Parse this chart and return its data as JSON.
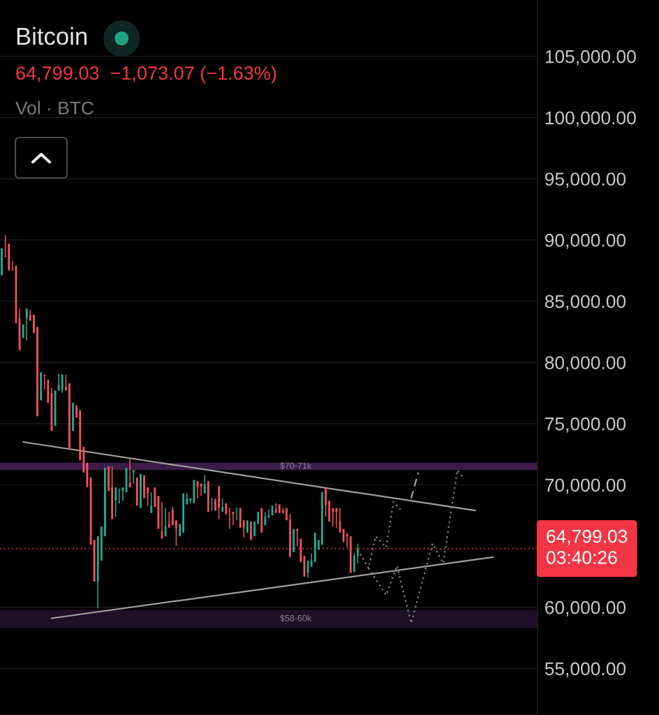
{
  "chart_data": {
    "type": "candlestick",
    "title": "Bitcoin",
    "subtitle": "64,799.03  −1,073.07 (−1.63%)",
    "annotations": [
      "Vol · BTC"
    ],
    "categories": [
      null,
      null,
      null,
      null,
      null,
      null,
      null,
      null,
      null,
      null,
      null,
      null,
      null,
      null,
      null,
      null,
      null,
      null,
      null,
      null,
      null,
      null,
      null,
      null,
      null,
      null,
      null,
      null,
      null,
      null,
      null,
      null,
      null,
      null,
      null,
      null,
      null,
      null,
      null,
      null,
      null,
      null,
      null,
      null,
      null,
      null,
      null,
      null,
      null,
      null,
      null,
      null,
      null,
      null,
      null,
      null,
      null,
      null,
      null,
      null,
      null,
      null,
      null,
      null,
      null,
      null,
      null,
      null,
      null,
      null,
      null,
      null,
      null,
      null,
      null,
      null,
      null,
      null,
      null,
      null,
      null,
      null,
      null,
      null,
      null,
      null,
      null,
      null,
      null,
      null,
      null,
      null,
      null,
      null,
      null,
      null,
      null,
      null,
      null,
      null,
      null,
      null,
      null,
      null,
      null,
      null,
      null,
      null,
      null,
      null,
      null,
      null,
      null,
      null,
      null,
      null,
      null,
      null,
      null,
      null,
      null,
      null,
      null,
      null,
      null,
      null,
      null,
      null,
      null,
      null,
      null,
      null,
      null,
      null,
      null,
      null,
      null,
      null,
      null,
      null,
      null,
      null,
      null,
      null,
      null,
      null,
      null,
      null,
      null,
      null,
      null
    ],
    "ohlc": [
      [
        87100,
        89300,
        87100,
        89300
      ],
      [
        88700,
        90400,
        88600,
        88600
      ],
      [
        89700,
        89700,
        87500,
        87500
      ],
      [
        87600,
        88300,
        87500,
        87500
      ],
      [
        87900,
        87900,
        83200,
        83200
      ],
      [
        83600,
        84400,
        81000,
        81000
      ],
      [
        82000,
        83100,
        82000,
        83100
      ],
      [
        83600,
        84400,
        81800,
        84400
      ],
      [
        83900,
        84300,
        83400,
        83400
      ],
      [
        83900,
        83900,
        82400,
        82400
      ],
      [
        82900,
        82900,
        75600,
        75600
      ],
      [
        76900,
        79200,
        76900,
        79200
      ],
      [
        79000,
        79000,
        77800,
        78900
      ],
      [
        78600,
        78600,
        76700,
        76700
      ],
      [
        77500,
        77900,
        74400,
        74400
      ],
      [
        74800,
        77700,
        74800,
        77700
      ],
      [
        77700,
        79100,
        77700,
        78200
      ],
      [
        77700,
        79000,
        77500,
        79000
      ],
      [
        78000,
        79000,
        77700,
        77700
      ],
      [
        78300,
        78300,
        72900,
        72900
      ],
      [
        74400,
        76700,
        74400,
        76700
      ],
      [
        76500,
        76500,
        75500,
        75500
      ],
      [
        76100,
        76100,
        72000,
        72000
      ],
      [
        73100,
        73100,
        71000,
        71000
      ],
      [
        71800,
        71800,
        69800,
        69800
      ],
      [
        70600,
        70600,
        65100,
        65100
      ],
      [
        65500,
        65500,
        62100,
        62100
      ],
      [
        62100,
        65800,
        59900,
        65800
      ],
      [
        63800,
        66600,
        63800,
        66600
      ],
      [
        65800,
        71400,
        65800,
        71400
      ],
      [
        71500,
        71500,
        69500,
        69500
      ],
      [
        69800,
        71500,
        67200,
        67200
      ],
      [
        68700,
        69800,
        67400,
        69800
      ],
      [
        68500,
        69700,
        68500,
        68600
      ],
      [
        69500,
        69800,
        68700,
        69800
      ],
      [
        69400,
        71400,
        69400,
        71400
      ],
      [
        70200,
        72100,
        69800,
        69800
      ],
      [
        71000,
        71200,
        70100,
        71200
      ],
      [
        70600,
        70600,
        68300,
        68300
      ],
      [
        68100,
        70900,
        68100,
        70900
      ],
      [
        70800,
        70800,
        68900,
        68900
      ],
      [
        69800,
        69800,
        68300,
        69300
      ],
      [
        67700,
        69400,
        67700,
        68300
      ],
      [
        69800,
        69800,
        68200,
        68200
      ],
      [
        69100,
        69100,
        66400,
        66400
      ],
      [
        66200,
        68600,
        65600,
        65600
      ],
      [
        65800,
        68100,
        65800,
        66600
      ],
      [
        66800,
        67800,
        66500,
        66500
      ],
      [
        68000,
        68200,
        66700,
        66700
      ],
      [
        67100,
        67100,
        65000,
        66400
      ],
      [
        65800,
        66800,
        65800,
        66800
      ],
      [
        66100,
        69300,
        66100,
        69300
      ],
      [
        68400,
        69300,
        68400,
        68900
      ],
      [
        68700,
        68900,
        68500,
        68900
      ],
      [
        68500,
        70400,
        68500,
        70400
      ],
      [
        70300,
        70300,
        68900,
        69800
      ],
      [
        70100,
        70100,
        69100,
        69900
      ],
      [
        69300,
        70800,
        69300,
        70100
      ],
      [
        70300,
        70300,
        67800,
        67800
      ],
      [
        68800,
        68900,
        67900,
        68900
      ],
      [
        68800,
        68900,
        67900,
        67900
      ],
      [
        69900,
        69900,
        67200,
        68100
      ],
      [
        67800,
        68900,
        67800,
        68200
      ],
      [
        68500,
        68500,
        67600,
        67600
      ],
      [
        68100,
        68100,
        66400,
        68000
      ],
      [
        67800,
        67800,
        66700,
        67600
      ],
      [
        68000,
        68100,
        67100,
        68100
      ],
      [
        68100,
        68100,
        66500,
        66500
      ],
      [
        67100,
        67100,
        65700,
        66500
      ],
      [
        66100,
        67100,
        66100,
        67100
      ],
      [
        67000,
        67000,
        65500,
        65500
      ],
      [
        65800,
        67000,
        65800,
        67000
      ],
      [
        66800,
        67800,
        66800,
        67800
      ],
      [
        68100,
        68100,
        66100,
        66100
      ],
      [
        66700,
        67800,
        66700,
        67400
      ],
      [
        67300,
        68000,
        67300,
        67500
      ],
      [
        67500,
        68300,
        67500,
        68300
      ],
      [
        68000,
        68500,
        67700,
        67700
      ],
      [
        68400,
        68400,
        67700,
        67700
      ],
      [
        67900,
        68100,
        67700,
        67700
      ],
      [
        68100,
        68100,
        67100,
        67100
      ],
      [
        67200,
        67600,
        64100,
        64100
      ],
      [
        64500,
        66400,
        64500,
        66400
      ],
      [
        66400,
        66400,
        65000,
        66200
      ],
      [
        65600,
        65600,
        63700,
        63700
      ],
      [
        64200,
        64200,
        62500,
        62500
      ],
      [
        62800,
        63800,
        62400,
        63800
      ],
      [
        63300,
        64400,
        63300,
        63800
      ],
      [
        63700,
        66100,
        63700,
        66100
      ],
      [
        64700,
        65500,
        64700,
        65500
      ],
      [
        65100,
        69400,
        65100,
        69400
      ],
      [
        69800,
        69800,
        67400,
        68300
      ],
      [
        68700,
        68700,
        67000,
        67000
      ],
      [
        68100,
        68100,
        66600,
        67800
      ],
      [
        68100,
        68100,
        66500,
        67800
      ],
      [
        67000,
        68100,
        66100,
        66100
      ],
      [
        66400,
        66400,
        65300,
        65400
      ],
      [
        66000,
        66000,
        64900,
        65800
      ],
      [
        65800,
        65800,
        62800,
        62800
      ],
      [
        62900,
        64400,
        62800,
        64200
      ],
      [
        64200,
        65200,
        63600,
        64799.03
      ],
      null,
      null,
      null,
      null,
      null,
      null,
      null,
      null,
      null,
      null,
      null,
      null,
      null,
      null,
      null,
      null,
      null,
      null,
      null,
      null,
      null,
      null,
      null,
      null,
      null,
      null,
      null,
      null,
      null,
      null,
      null,
      null,
      null,
      null,
      null,
      null,
      null,
      null,
      null,
      null,
      null,
      null,
      null,
      null,
      null,
      null,
      null,
      null,
      null,
      null
    ],
    "colors": [
      "#22ab94",
      "#f7525f",
      "#f7525f",
      "#f7525f",
      "#f7525f",
      "#f7525f",
      "#22ab94",
      "#22ab94",
      "#f7525f",
      "#f7525f",
      "#f7525f",
      "#22ab94",
      "#f7525f",
      "#f7525f",
      "#f7525f",
      "#22ab94",
      "#22ab94",
      "#22ab94",
      "#f7525f",
      "#f7525f",
      "#22ab94",
      "#f7525f",
      "#f7525f",
      "#f7525f",
      "#f7525f",
      "#f7525f",
      "#f7525f",
      "#22ab94",
      "#22ab94",
      "#22ab94",
      "#f7525f",
      "#f7525f",
      "#22ab94",
      "#22ab94",
      "#22ab94",
      "#22ab94",
      "#f7525f",
      "#22ab94",
      "#f7525f",
      "#22ab94",
      "#f7525f",
      "#f7525f",
      "#22ab94",
      "#f7525f",
      "#f7525f",
      "#f7525f",
      "#22ab94",
      "#f7525f",
      "#f7525f",
      "#f7525f",
      "#22ab94",
      "#22ab94",
      "#22ab94",
      "#22ab94",
      "#22ab94",
      "#f7525f",
      "#f7525f",
      "#22ab94",
      "#f7525f",
      "#22ab94",
      "#f7525f",
      "#f7525f",
      "#22ab94",
      "#f7525f",
      "#f7525f",
      "#f7525f",
      "#22ab94",
      "#f7525f",
      "#f7525f",
      "#22ab94",
      "#f7525f",
      "#22ab94",
      "#22ab94",
      "#f7525f",
      "#22ab94",
      "#22ab94",
      "#22ab94",
      "#f7525f",
      "#f7525f",
      "#f7525f",
      "#f7525f",
      "#f7525f",
      "#22ab94",
      "#f7525f",
      "#f7525f",
      "#f7525f",
      "#22ab94",
      "#22ab94",
      "#22ab94",
      "#22ab94",
      "#22ab94",
      "#f7525f",
      "#f7525f",
      "#f7525f",
      "#f7525f",
      "#f7525f",
      "#f7525f",
      "#f7525f",
      "#f7525f",
      "#22ab94",
      "#22ab94",
      null,
      null,
      null,
      null,
      null,
      null,
      null,
      null,
      null,
      null,
      null,
      null,
      null,
      null,
      null,
      null,
      null,
      null,
      null,
      null,
      null,
      null,
      null,
      null,
      null,
      null,
      null,
      null,
      null,
      null,
      null,
      null,
      null,
      null,
      null,
      null,
      null,
      null,
      null,
      null,
      null,
      null,
      null,
      null,
      null,
      null,
      null,
      null,
      null,
      null
    ],
    "series": [
      {
        "type": "line",
        "color": "#9e9e9e",
        "line_style": "solid",
        "values": [
          null,
          null,
          null,
          null,
          null,
          null,
          73500,
          null,
          null,
          null,
          null,
          null,
          null,
          null,
          null,
          null,
          null,
          null,
          null,
          null,
          null,
          null,
          null,
          null,
          null,
          null,
          null,
          null,
          null,
          null,
          null,
          null,
          null,
          null,
          null,
          null,
          null,
          null,
          null,
          null,
          null,
          null,
          null,
          null,
          null,
          null,
          null,
          null,
          null,
          null,
          null,
          null,
          null,
          null,
          null,
          null,
          null,
          null,
          null,
          null,
          null,
          null,
          null,
          null,
          null,
          null,
          null,
          null,
          null,
          null,
          null,
          null,
          null,
          null,
          null,
          null,
          null,
          null,
          null,
          null,
          null,
          null,
          null,
          null,
          null,
          null,
          null,
          null,
          null,
          null,
          null,
          null,
          null,
          null,
          null,
          null,
          null,
          null,
          null,
          null,
          null,
          null,
          null,
          null,
          null,
          null,
          null,
          null,
          null,
          null,
          null,
          null,
          null,
          null,
          null,
          null,
          null,
          null,
          null,
          null,
          null,
          null,
          null,
          null,
          null,
          null,
          null,
          null,
          null,
          null,
          null,
          null,
          null,
          67900,
          null,
          null,
          null,
          null,
          null,
          null,
          null,
          null,
          null,
          null,
          null,
          null,
          null,
          null,
          null,
          null,
          null
        ]
      },
      {
        "type": "line",
        "color": "#9e9e9e",
        "line_style": "solid",
        "values": [
          null,
          null,
          null,
          null,
          null,
          null,
          null,
          null,
          null,
          null,
          null,
          null,
          null,
          null,
          59100,
          null,
          null,
          null,
          null,
          null,
          null,
          null,
          null,
          null,
          null,
          null,
          null,
          null,
          null,
          null,
          null,
          null,
          null,
          null,
          null,
          null,
          null,
          null,
          null,
          null,
          null,
          null,
          null,
          null,
          null,
          null,
          null,
          null,
          null,
          null,
          null,
          null,
          null,
          null,
          null,
          null,
          null,
          null,
          null,
          null,
          null,
          null,
          null,
          null,
          null,
          null,
          null,
          null,
          null,
          null,
          null,
          null,
          null,
          null,
          null,
          null,
          null,
          null,
          null,
          null,
          null,
          null,
          null,
          null,
          null,
          null,
          null,
          null,
          null,
          null,
          null,
          null,
          null,
          null,
          null,
          null,
          null,
          null,
          null,
          null,
          null,
          null,
          null,
          null,
          null,
          null,
          null,
          null,
          null,
          null,
          null,
          null,
          null,
          null,
          null,
          null,
          null,
          null,
          null,
          null,
          null,
          null,
          null,
          null,
          null,
          null,
          null,
          null,
          null,
          null,
          null,
          null,
          null,
          null,
          null,
          null,
          null,
          null,
          64100,
          null,
          null,
          null,
          null,
          null,
          null,
          null,
          null,
          null,
          null,
          null,
          null
        ]
      },
      {
        "type": "line",
        "color": "#8a8a8a",
        "line_style": "dotted",
        "values": [
          null,
          null,
          null,
          null,
          null,
          null,
          null,
          null,
          null,
          null,
          null,
          null,
          null,
          null,
          null,
          null,
          null,
          null,
          null,
          null,
          null,
          null,
          null,
          null,
          null,
          null,
          null,
          null,
          null,
          null,
          null,
          null,
          null,
          null,
          null,
          null,
          null,
          null,
          null,
          null,
          null,
          null,
          null,
          null,
          null,
          null,
          null,
          null,
          null,
          null,
          null,
          null,
          null,
          null,
          null,
          null,
          null,
          null,
          null,
          null,
          null,
          null,
          null,
          null,
          null,
          null,
          null,
          null,
          null,
          null,
          null,
          null,
          null,
          null,
          null,
          null,
          null,
          null,
          null,
          null,
          null,
          null,
          null,
          null,
          null,
          null,
          null,
          null,
          null,
          null,
          null,
          null,
          null,
          null,
          null,
          null,
          null,
          null,
          null,
          null,
          64700,
          null,
          null,
          63200,
          null,
          65800,
          null,
          null,
          64900,
          null,
          68600,
          null,
          68000,
          null,
          null,
          null,
          null,
          null,
          null,
          null,
          null,
          null,
          null,
          null,
          null,
          null,
          null,
          null,
          null,
          null,
          null,
          null,
          null,
          null,
          null,
          null,
          null,
          null,
          null,
          null,
          null,
          null,
          null,
          null,
          null,
          null,
          null,
          null,
          null,
          null,
          null
        ]
      },
      {
        "type": "line",
        "color": "#8a8a8a",
        "line_style": "dotted",
        "values": [
          null,
          null,
          null,
          null,
          null,
          null,
          null,
          null,
          null,
          null,
          null,
          null,
          null,
          null,
          null,
          null,
          null,
          null,
          null,
          null,
          null,
          null,
          null,
          null,
          null,
          null,
          null,
          null,
          null,
          null,
          null,
          null,
          null,
          null,
          null,
          null,
          null,
          null,
          null,
          null,
          null,
          null,
          null,
          null,
          null,
          null,
          null,
          null,
          null,
          null,
          null,
          null,
          null,
          null,
          null,
          null,
          null,
          null,
          null,
          null,
          null,
          null,
          null,
          null,
          null,
          null,
          null,
          null,
          null,
          null,
          null,
          null,
          null,
          null,
          null,
          null,
          null,
          null,
          null,
          null,
          null,
          null,
          null,
          null,
          null,
          null,
          null,
          null,
          null,
          null,
          null,
          null,
          null,
          null,
          null,
          null,
          null,
          null,
          null,
          null,
          null,
          null,
          null,
          63200,
          null,
          null,
          null,
          null,
          61000,
          null,
          null,
          63400,
          null,
          null,
          null,
          58700,
          null,
          null,
          null,
          null,
          null,
          65200,
          null,
          null,
          63600,
          null,
          null,
          null,
          71200,
          null,
          70500,
          null,
          null,
          null,
          null,
          null,
          null,
          null,
          null,
          null,
          null,
          null,
          null,
          null,
          null,
          null,
          null,
          null,
          null,
          null,
          null
        ]
      },
      {
        "type": "line",
        "color": "#a0a0a0",
        "line_style": "dashed",
        "values": [
          null,
          null,
          null,
          null,
          null,
          null,
          null,
          null,
          null,
          null,
          null,
          null,
          null,
          null,
          null,
          null,
          null,
          null,
          null,
          null,
          null,
          null,
          null,
          null,
          null,
          null,
          null,
          null,
          null,
          null,
          null,
          null,
          null,
          null,
          null,
          null,
          null,
          null,
          null,
          null,
          null,
          null,
          null,
          null,
          null,
          null,
          null,
          null,
          null,
          null,
          null,
          null,
          null,
          null,
          null,
          null,
          null,
          null,
          null,
          null,
          null,
          null,
          null,
          null,
          null,
          null,
          null,
          null,
          null,
          null,
          null,
          null,
          null,
          null,
          null,
          null,
          null,
          null,
          null,
          null,
          null,
          null,
          null,
          null,
          null,
          null,
          null,
          null,
          null,
          null,
          null,
          null,
          null,
          null,
          null,
          null,
          null,
          null,
          null,
          null,
          null,
          null,
          null,
          null,
          null,
          null,
          null,
          null,
          null,
          null,
          null,
          null,
          null,
          null,
          null,
          68900,
          null,
          71000,
          null,
          null,
          null,
          null,
          null,
          null,
          null,
          null,
          null,
          null,
          null,
          null,
          null,
          null,
          null,
          null,
          null,
          null,
          null,
          null,
          null,
          null,
          null,
          null,
          null,
          null,
          null,
          null,
          null,
          null,
          null,
          null,
          null
        ]
      }
    ],
    "ylim": [
      51200,
      109600
    ],
    "yticks": [
      {
        "value": 55000,
        "label": "55,000.00"
      },
      {
        "value": 60000,
        "label": "60,000.00"
      },
      {
        "value": 70000,
        "label": "70,000.00"
      },
      {
        "value": 75000,
        "label": "75,000.00"
      },
      {
        "value": 80000,
        "label": "80,000.00"
      },
      {
        "value": 85000,
        "label": "85,000.00"
      },
      {
        "value": 90000,
        "label": "90,000.00"
      },
      {
        "value": 95000,
        "label": "95,000.00"
      },
      {
        "value": 100000,
        "label": "100,000.00"
      },
      {
        "value": 105000,
        "label": "105,000.00"
      }
    ],
    "grid": "y",
    "tick_labels": "y",
    "ref_lines": [
      {
        "axis": "y",
        "value": 64799.03,
        "label": "64,799.03\n03:40:26",
        "color": "#f23645",
        "line_style": "dotted"
      }
    ],
    "bands": [
      {
        "axis": "y",
        "from": 71200,
        "to": 71800,
        "label": "$70-71k",
        "color": "#3b1d47"
      },
      {
        "axis": "y",
        "from": 58300,
        "to": 59800,
        "label": "$58-60k",
        "color": "#1f0f27"
      }
    ]
  }
}
